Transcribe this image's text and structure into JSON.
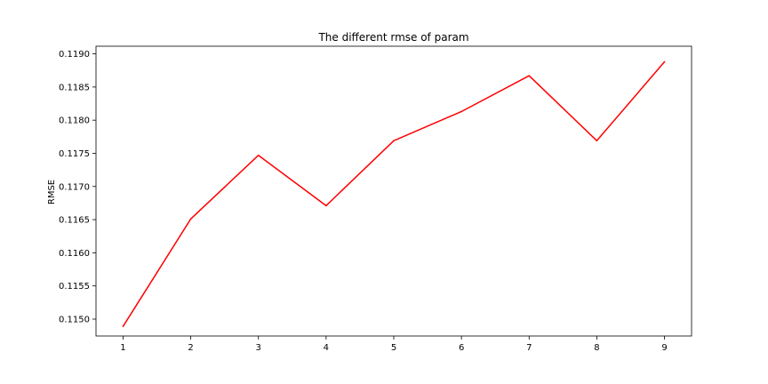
{
  "chart_data": {
    "type": "line",
    "title": "The different rmse of param",
    "xlabel": "",
    "ylabel": "RMSE",
    "x": [
      1,
      2,
      3,
      4,
      5,
      6,
      7,
      8,
      9
    ],
    "series": [
      {
        "color": "#ff0000",
        "values": [
          0.11489,
          0.11651,
          0.11747,
          0.11671,
          0.11769,
          0.11813,
          0.11867,
          0.11769,
          0.11888
        ]
      }
    ],
    "xlim": [
      0.6,
      9.4
    ],
    "ylim": [
      0.114745,
      0.119115
    ],
    "x_ticks": [
      1,
      2,
      3,
      4,
      5,
      6,
      7,
      8,
      9
    ],
    "x_tick_labels": [
      "1",
      "2",
      "3",
      "4",
      "5",
      "6",
      "7",
      "8",
      "9"
    ],
    "y_ticks": [
      0.115,
      0.1155,
      0.116,
      0.1165,
      0.117,
      0.1175,
      0.118,
      0.1185,
      0.119
    ],
    "y_tick_labels": [
      "0.1150",
      "0.1155",
      "0.1160",
      "0.1165",
      "0.1170",
      "0.1175",
      "0.1180",
      "0.1185",
      "0.1190"
    ],
    "grid": false,
    "legend": "none"
  }
}
